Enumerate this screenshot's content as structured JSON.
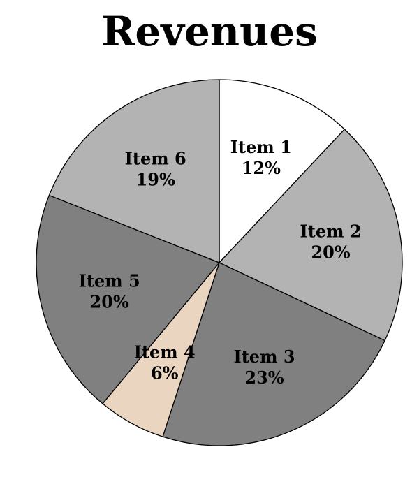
{
  "chart_data": {
    "type": "pie",
    "title": "Revenues",
    "slices": [
      {
        "label": "Item 1",
        "value": 12,
        "value_label": "12%",
        "color": "#ffffff"
      },
      {
        "label": "Item 2",
        "value": 20,
        "value_label": "20%",
        "color": "#b3b3b3"
      },
      {
        "label": "Item 3",
        "value": 23,
        "value_label": "23%",
        "color": "#808080"
      },
      {
        "label": "Item 4",
        "value": 6,
        "value_label": "6%",
        "color": "#ead5c0"
      },
      {
        "label": "Item 5",
        "value": 20,
        "value_label": "20%",
        "color": "#808080"
      },
      {
        "label": "Item 6",
        "value": 19,
        "value_label": "19%",
        "color": "#b3b3b3"
      }
    ],
    "start_angle": "top",
    "direction": "clockwise",
    "legend": "none"
  }
}
